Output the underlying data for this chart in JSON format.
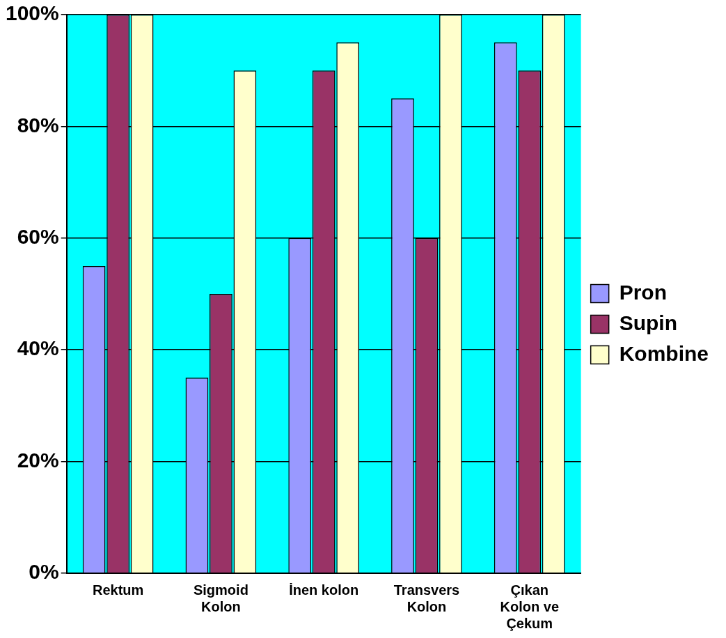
{
  "chart_data": {
    "type": "bar",
    "categories": [
      "Rektum",
      "Sigmoid Kolon",
      "İnen kolon",
      "Transvers Kolon",
      "Çıkan Kolon ve Çekum"
    ],
    "series": [
      {
        "name": "Pron",
        "color": "#9999ff",
        "values": [
          55,
          35,
          60,
          85,
          95
        ]
      },
      {
        "name": "Supin",
        "color": "#993366",
        "values": [
          100,
          50,
          90,
          60,
          90
        ]
      },
      {
        "name": "Kombine",
        "color": "#ffffcc",
        "values": [
          100,
          90,
          95,
          100,
          100
        ]
      }
    ],
    "ylim": [
      0,
      100
    ],
    "yticks": [
      {
        "value": 0,
        "label": "0%"
      },
      {
        "value": 20,
        "label": "20%"
      },
      {
        "value": 40,
        "label": "40%"
      },
      {
        "value": 60,
        "label": "60%"
      },
      {
        "value": 80,
        "label": "80%"
      },
      {
        "value": 100,
        "label": "100%"
      }
    ],
    "grid": "y",
    "legend": "right"
  }
}
